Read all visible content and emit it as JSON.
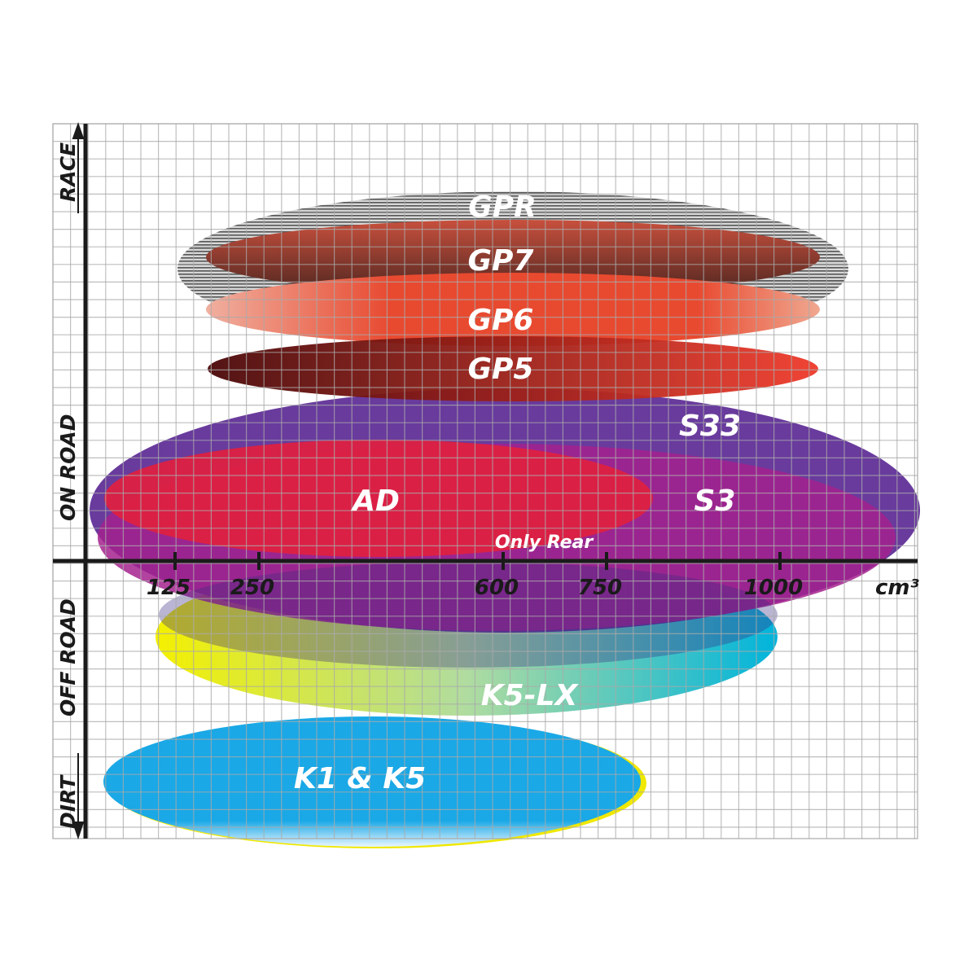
{
  "chart_data": {
    "type": "diagram",
    "axis_y_labels": [
      "RACE",
      "ON ROAD",
      "OFF ROAD",
      "DIRT"
    ],
    "x_ticks": [
      "125",
      "250",
      "600",
      "750",
      "1000"
    ],
    "x_unit": "cm³",
    "grid": true,
    "ranges": [
      {
        "name": "GPR",
        "color": "#b8b8b8"
      },
      {
        "name": "GP7",
        "color": "#8a3a2c"
      },
      {
        "name": "GP6",
        "color": "#e8472e"
      },
      {
        "name": "GP5",
        "color": "#8e1410"
      },
      {
        "name": "S33",
        "color": "#5c2a95"
      },
      {
        "name": "S3",
        "color": "#a4228e"
      },
      {
        "name": "AD",
        "color": "#e1203f"
      },
      {
        "name": "K5-LX",
        "color": "#2bbcc8"
      },
      {
        "name": "K1 & K5",
        "color": "#1aa8e6"
      }
    ],
    "annotations": [
      "Only Rear"
    ]
  }
}
